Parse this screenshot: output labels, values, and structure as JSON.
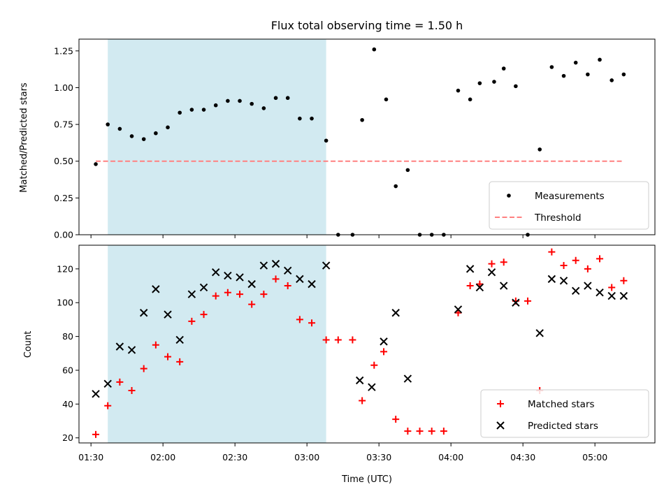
{
  "figure": {
    "title": "Flux total observing time = 1.50 h",
    "shaded_span": [
      "01:37",
      "03:08"
    ],
    "shade_color": "#add8e6"
  },
  "chart_data": [
    {
      "type": "scatter",
      "title": "Flux total observing time = 1.50 h",
      "xlabel": "",
      "ylabel": "Matched/Predicted stars",
      "xlim": [
        "01:25",
        "05:25"
      ],
      "ylim": [
        0,
        1.33
      ],
      "yticks": [
        "0.00",
        "0.25",
        "0.50",
        "0.75",
        "1.00",
        "1.25"
      ],
      "legend_position": "lower-right",
      "series": [
        {
          "name": "Measurements",
          "marker": "dot",
          "color": "#000000",
          "points": [
            [
              "01:32",
              0.48
            ],
            [
              "01:37",
              0.75
            ],
            [
              "01:42",
              0.72
            ],
            [
              "01:47",
              0.67
            ],
            [
              "01:52",
              0.65
            ],
            [
              "01:57",
              0.69
            ],
            [
              "02:02",
              0.73
            ],
            [
              "02:07",
              0.83
            ],
            [
              "02:12",
              0.85
            ],
            [
              "02:17",
              0.85
            ],
            [
              "02:22",
              0.88
            ],
            [
              "02:27",
              0.91
            ],
            [
              "02:32",
              0.91
            ],
            [
              "02:37",
              0.89
            ],
            [
              "02:42",
              0.86
            ],
            [
              "02:47",
              0.93
            ],
            [
              "02:52",
              0.93
            ],
            [
              "02:57",
              0.79
            ],
            [
              "03:02",
              0.79
            ],
            [
              "03:08",
              0.64
            ],
            [
              "03:13",
              0.0
            ],
            [
              "03:19",
              0.0
            ],
            [
              "03:23",
              0.78
            ],
            [
              "03:28",
              1.26
            ],
            [
              "03:33",
              0.92
            ],
            [
              "03:37",
              0.33
            ],
            [
              "03:42",
              0.44
            ],
            [
              "03:47",
              0.0
            ],
            [
              "03:52",
              0.0
            ],
            [
              "03:57",
              0.0
            ],
            [
              "04:03",
              0.98
            ],
            [
              "04:08",
              0.92
            ],
            [
              "04:12",
              1.03
            ],
            [
              "04:18",
              1.04
            ],
            [
              "04:22",
              1.13
            ],
            [
              "04:27",
              1.01
            ],
            [
              "04:32",
              0.0
            ],
            [
              "04:37",
              0.58
            ],
            [
              "04:42",
              1.14
            ],
            [
              "04:47",
              1.08
            ],
            [
              "04:52",
              1.17
            ],
            [
              "04:57",
              1.09
            ],
            [
              "05:02",
              1.19
            ],
            [
              "05:07",
              1.05
            ],
            [
              "05:12",
              1.09
            ]
          ]
        },
        {
          "name": "Threshold",
          "marker": "dashed-line",
          "color": "#ff8080",
          "points": [
            [
              "01:32",
              0.5
            ],
            [
              "05:12",
              0.5
            ]
          ]
        }
      ]
    },
    {
      "type": "scatter",
      "xlabel": "Time (UTC)",
      "ylabel": "Count",
      "xlim": [
        "01:25",
        "05:25"
      ],
      "ylim": [
        17,
        134
      ],
      "xticks": [
        "01:30",
        "02:00",
        "02:30",
        "03:00",
        "03:30",
        "04:00",
        "04:30",
        "05:00"
      ],
      "yticks": [
        "20",
        "40",
        "60",
        "80",
        "100",
        "120"
      ],
      "legend_position": "lower-right",
      "series": [
        {
          "name": "Matched stars",
          "marker": "plus",
          "color": "#ff0000",
          "points": [
            [
              "01:32",
              22
            ],
            [
              "01:37",
              39
            ],
            [
              "01:42",
              53
            ],
            [
              "01:47",
              48
            ],
            [
              "01:52",
              61
            ],
            [
              "01:57",
              75
            ],
            [
              "02:02",
              68
            ],
            [
              "02:07",
              65
            ],
            [
              "02:12",
              89
            ],
            [
              "02:17",
              93
            ],
            [
              "02:22",
              104
            ],
            [
              "02:27",
              106
            ],
            [
              "02:32",
              105
            ],
            [
              "02:37",
              99
            ],
            [
              "02:42",
              105
            ],
            [
              "02:47",
              114
            ],
            [
              "02:52",
              110
            ],
            [
              "02:57",
              90
            ],
            [
              "03:02",
              88
            ],
            [
              "03:08",
              78
            ],
            [
              "03:13",
              78
            ],
            [
              "03:19",
              78
            ],
            [
              "03:23",
              42
            ],
            [
              "03:28",
              63
            ],
            [
              "03:32",
              71
            ],
            [
              "03:37",
              31
            ],
            [
              "03:42",
              24
            ],
            [
              "03:47",
              24
            ],
            [
              "03:52",
              24
            ],
            [
              "03:57",
              24
            ],
            [
              "04:03",
              94
            ],
            [
              "04:08",
              110
            ],
            [
              "04:12",
              111
            ],
            [
              "04:17",
              123
            ],
            [
              "04:22",
              124
            ],
            [
              "04:27",
              101
            ],
            [
              "04:32",
              101
            ],
            [
              "04:37",
              48
            ],
            [
              "04:42",
              130
            ],
            [
              "04:47",
              122
            ],
            [
              "04:52",
              125
            ],
            [
              "04:57",
              120
            ],
            [
              "05:02",
              126
            ],
            [
              "05:07",
              109
            ],
            [
              "05:12",
              113
            ]
          ]
        },
        {
          "name": "Predicted stars",
          "marker": "x",
          "color": "#000000",
          "points": [
            [
              "01:32",
              46
            ],
            [
              "01:37",
              52
            ],
            [
              "01:42",
              74
            ],
            [
              "01:47",
              72
            ],
            [
              "01:52",
              94
            ],
            [
              "01:57",
              108
            ],
            [
              "02:02",
              93
            ],
            [
              "02:07",
              78
            ],
            [
              "02:12",
              105
            ],
            [
              "02:17",
              109
            ],
            [
              "02:22",
              118
            ],
            [
              "02:27",
              116
            ],
            [
              "02:32",
              115
            ],
            [
              "02:37",
              111
            ],
            [
              "02:42",
              122
            ],
            [
              "02:47",
              123
            ],
            [
              "02:52",
              119
            ],
            [
              "02:57",
              114
            ],
            [
              "03:02",
              111
            ],
            [
              "03:08",
              122
            ],
            [
              "03:22",
              54
            ],
            [
              "03:27",
              50
            ],
            [
              "03:32",
              77
            ],
            [
              "03:37",
              94
            ],
            [
              "03:42",
              55
            ],
            [
              "04:03",
              96
            ],
            [
              "04:08",
              120
            ],
            [
              "04:12",
              109
            ],
            [
              "04:17",
              118
            ],
            [
              "04:22",
              110
            ],
            [
              "04:27",
              100
            ],
            [
              "04:37",
              82
            ],
            [
              "04:42",
              114
            ],
            [
              "04:47",
              113
            ],
            [
              "04:52",
              107
            ],
            [
              "04:57",
              110
            ],
            [
              "05:02",
              106
            ],
            [
              "05:07",
              104
            ],
            [
              "05:12",
              104
            ]
          ]
        }
      ]
    }
  ]
}
